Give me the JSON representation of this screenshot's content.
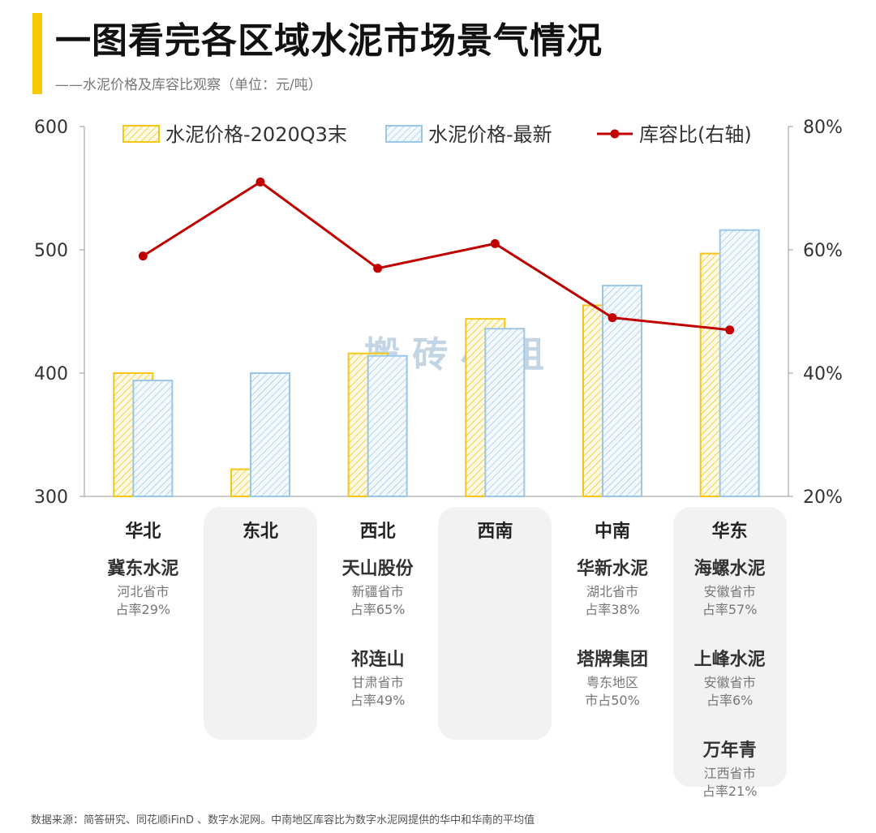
{
  "header": {
    "title": "一图看完各区域水泥市场景气情况",
    "subtitle": "——水泥价格及库容比观察（单位：元/吨）"
  },
  "colors": {
    "accent": "#f7c800",
    "bar_2020": "#f5c518",
    "bar_latest": "#9cc6e6",
    "line": "#c00000",
    "watermark": "#8fb3cf"
  },
  "watermark": "搬 砖 小 组",
  "chart_data": {
    "type": "bar",
    "title": "一图看完各区域水泥市场景气情况",
    "categories": [
      "华北",
      "东北",
      "西北",
      "西南",
      "中南",
      "华东"
    ],
    "series": [
      {
        "name": "水泥价格-2020Q3末",
        "values": [
          400,
          322,
          416,
          444,
          455,
          497
        ],
        "axis": "left"
      },
      {
        "name": "水泥价格-最新",
        "values": [
          394,
          400,
          414,
          436,
          471,
          516
        ],
        "axis": "left"
      },
      {
        "name": "库容比(右轴)",
        "type": "line",
        "values": [
          59,
          null,
          57,
          61,
          49,
          47
        ],
        "axis": "right"
      }
    ],
    "line_values_all": [
      59,
      71,
      57,
      61,
      49,
      47
    ],
    "ylim": [
      300,
      600
    ],
    "yticks": [
      "600",
      "500",
      "400",
      "300"
    ],
    "y2lim": [
      20,
      80
    ],
    "y2ticks": [
      "80%",
      "60%",
      "40%",
      "20%"
    ],
    "legend": [
      "水泥价格-2020Q3末",
      "水泥价格-最新",
      "库容比(右轴)"
    ],
    "legend_position": "top"
  },
  "regions": [
    {
      "name": "华北",
      "highlight": false,
      "companies": [
        {
          "name": "冀东水泥",
          "desc1": "河北省市",
          "desc2": "占率29%"
        }
      ]
    },
    {
      "name": "东北",
      "highlight": true,
      "companies": []
    },
    {
      "name": "西北",
      "highlight": false,
      "companies": [
        {
          "name": "天山股份",
          "desc1": "新疆省市",
          "desc2": "占率65%"
        },
        {
          "name": "祁连山",
          "desc1": "甘肃省市",
          "desc2": "占率49%"
        }
      ]
    },
    {
      "name": "西南",
      "highlight": true,
      "companies": []
    },
    {
      "name": "中南",
      "highlight": false,
      "companies": [
        {
          "name": "华新水泥",
          "desc1": "湖北省市",
          "desc2": "占率38%"
        },
        {
          "name": "塔牌集团",
          "desc1": "粤东地区",
          "desc2": "市占50%"
        }
      ]
    },
    {
      "name": "华东",
      "highlight": true,
      "companies": [
        {
          "name": "海螺水泥",
          "desc1": "安徽省市",
          "desc2": "占率57%"
        },
        {
          "name": "上峰水泥",
          "desc1": "安徽省市",
          "desc2": "占率6%"
        },
        {
          "name": "万年青",
          "desc1": "江西省市",
          "desc2": "占率21%"
        }
      ]
    }
  ],
  "footer": {
    "source": "数据来源：简答研究、同花顺iFinD 、数字水泥网。中南地区库容比为数字水泥网提供的华中和华南的平均值"
  }
}
